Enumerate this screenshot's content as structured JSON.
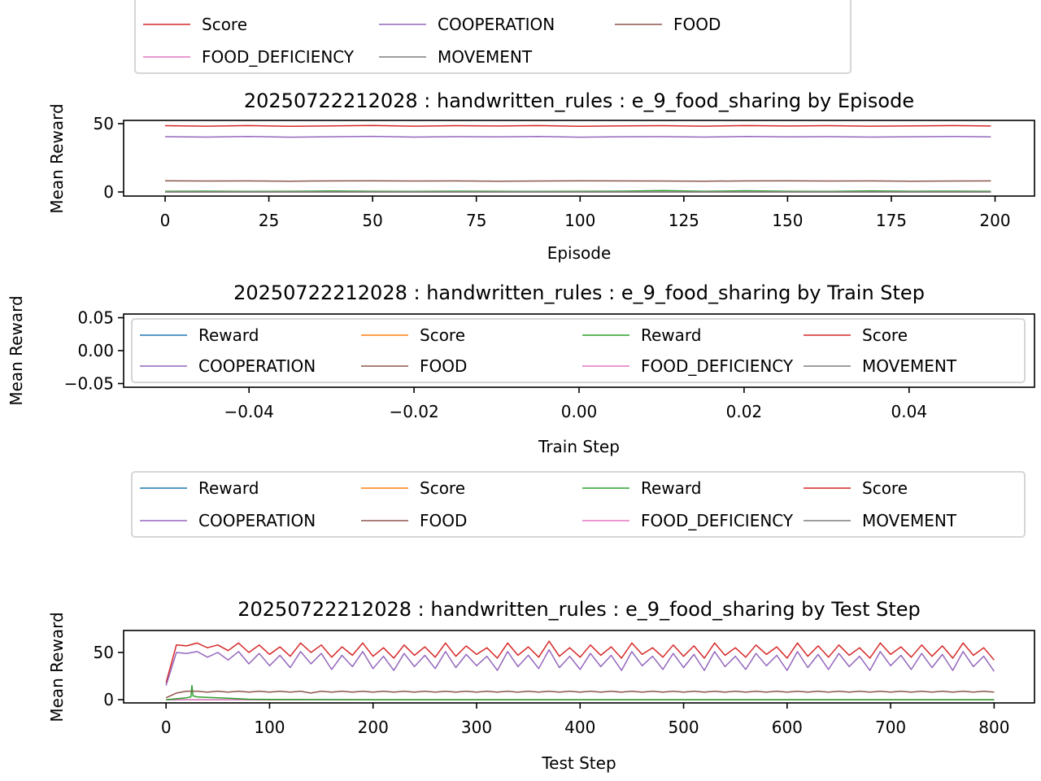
{
  "colors": {
    "blue": "#1f77b4",
    "orange": "#ff7f0e",
    "green": "#2ca02c",
    "red": "#d62728",
    "purple": "#9467bd",
    "brown": "#8c564b",
    "pink": "#e377c2",
    "gray": "#7f7f7f"
  },
  "chart_data": [
    {
      "type": "line",
      "title": "20250722212028 : handwritten_rules : e_9_food_sharing by Episode",
      "xlabel": "Episode",
      "ylabel": "Mean Reward",
      "xlim": [
        -10,
        209.5
      ],
      "ylim": [
        -3,
        52.4
      ],
      "xticks": [
        0,
        25,
        50,
        75,
        100,
        125,
        150,
        175,
        200
      ],
      "xtick_labels": [
        "0",
        "25",
        "50",
        "75",
        "100",
        "125",
        "150",
        "175",
        "200"
      ],
      "yticks": [
        0,
        50
      ],
      "ytick_labels": [
        "0",
        "50"
      ],
      "grid": false,
      "x": [
        0,
        10,
        20,
        30,
        40,
        50,
        60,
        70,
        80,
        90,
        100,
        110,
        120,
        130,
        140,
        150,
        160,
        170,
        180,
        190,
        199
      ],
      "series": [
        {
          "name": "Reward",
          "color": "#2ca02c",
          "values": [
            0.5,
            0.6,
            0.4,
            0.5,
            0.7,
            0.5,
            0.4,
            0.6,
            0.5,
            0.4,
            0.5,
            0.6,
            1.0,
            0.5,
            0.9,
            0.5,
            0.4,
            0.8,
            0.5,
            0.6,
            0.5
          ]
        },
        {
          "name": "FOOD_DEFICIENCY",
          "color": "#e377c2",
          "values": [
            0,
            0,
            0,
            0,
            0,
            0,
            0,
            0,
            0,
            0,
            0,
            0,
            0,
            0,
            0,
            0,
            0,
            0,
            0,
            0,
            0
          ]
        },
        {
          "name": "MOVEMENT",
          "color": "#7f7f7f",
          "values": [
            0,
            0,
            0,
            0,
            0,
            0,
            0,
            0,
            0,
            0,
            0,
            0,
            0,
            0,
            0,
            0,
            0,
            0,
            0,
            0,
            0
          ]
        },
        {
          "name": "FOOD",
          "color": "#8c564b",
          "values": [
            8.2,
            8.0,
            8.1,
            7.9,
            8.1,
            8.2,
            8.0,
            8.1,
            7.9,
            8.0,
            8.2,
            8.1,
            8.0,
            7.9,
            8.1,
            8.2,
            8.0,
            8.1,
            7.9,
            8.0,
            8.1
          ]
        },
        {
          "name": "COOPERATION",
          "color": "#9467bd",
          "values": [
            40.5,
            40.2,
            40.6,
            40.1,
            40.4,
            40.7,
            40.2,
            40.5,
            40.3,
            40.6,
            40.1,
            40.4,
            40.5,
            40.2,
            40.6,
            40.3,
            40.5,
            40.2,
            40.4,
            40.6,
            40.3
          ]
        },
        {
          "name": "Score",
          "color": "#d62728",
          "values": [
            48.5,
            48.2,
            48.6,
            48.1,
            48.4,
            48.7,
            48.2,
            48.5,
            48.3,
            48.6,
            48.1,
            48.4,
            48.5,
            48.2,
            48.6,
            48.3,
            48.5,
            48.2,
            48.4,
            48.6,
            48.3
          ]
        }
      ],
      "legend": {
        "placement": "upper-left (overflowing top)",
        "items": [
          {
            "label": "Score",
            "color": "#d62728"
          },
          {
            "label": "COOPERATION",
            "color": "#9467bd"
          },
          {
            "label": "FOOD",
            "color": "#8c564b"
          },
          {
            "label": "FOOD_DEFICIENCY",
            "color": "#e377c2"
          },
          {
            "label": "MOVEMENT",
            "color": "#7f7f7f"
          }
        ]
      }
    },
    {
      "type": "line",
      "title": "20250722212028 : handwritten_rules : e_9_food_sharing by Train Step",
      "xlabel": "Train Step",
      "ylabel": "Mean Reward",
      "xlim": [
        -0.0552,
        0.0552
      ],
      "ylim": [
        -0.0556,
        0.0556
      ],
      "xticks": [
        -0.04,
        -0.02,
        0.0,
        0.02,
        0.04
      ],
      "xtick_labels": [
        "−0.04",
        "−0.02",
        "0.00",
        "0.02",
        "0.04"
      ],
      "yticks": [
        0.05,
        0.0,
        -0.05
      ],
      "ytick_labels": [
        "0.05",
        "0.00",
        "−0.05"
      ],
      "grid": false,
      "series": [],
      "legend": {
        "placement": "right",
        "items": [
          {
            "label": "Reward",
            "color": "#1f77b4"
          },
          {
            "label": "Score",
            "color": "#ff7f0e"
          },
          {
            "label": "Reward",
            "color": "#2ca02c"
          },
          {
            "label": "Score",
            "color": "#d62728"
          },
          {
            "label": "COOPERATION",
            "color": "#9467bd"
          },
          {
            "label": "FOOD",
            "color": "#8c564b"
          },
          {
            "label": "FOOD_DEFICIENCY",
            "color": "#e377c2"
          },
          {
            "label": "MOVEMENT",
            "color": "#7f7f7f"
          }
        ]
      }
    },
    {
      "type": "line",
      "title": "20250722212028 : handwritten_rules : e_9_food_sharing by Test Step",
      "xlabel": "Test Step",
      "ylabel": "Mean Reward",
      "xlim": [
        -41,
        839
      ],
      "ylim": [
        -3.4,
        73.3
      ],
      "xticks": [
        0,
        100,
        200,
        300,
        400,
        500,
        600,
        700,
        800
      ],
      "xtick_labels": [
        "0",
        "100",
        "200",
        "300",
        "400",
        "500",
        "600",
        "700",
        "800"
      ],
      "yticks": [
        0,
        50
      ],
      "ytick_labels": [
        "0",
        "50"
      ],
      "grid": false,
      "x": [
        0,
        10,
        20,
        30,
        40,
        50,
        60,
        70,
        80,
        90,
        100,
        110,
        120,
        130,
        140,
        150,
        160,
        170,
        180,
        190,
        200,
        210,
        220,
        230,
        240,
        250,
        260,
        270,
        280,
        290,
        300,
        310,
        320,
        330,
        340,
        350,
        360,
        370,
        380,
        390,
        400,
        410,
        420,
        430,
        440,
        450,
        460,
        470,
        480,
        490,
        500,
        510,
        520,
        530,
        540,
        550,
        560,
        570,
        580,
        590,
        600,
        610,
        620,
        630,
        640,
        650,
        660,
        670,
        680,
        690,
        700,
        710,
        720,
        730,
        740,
        750,
        760,
        770,
        780,
        790,
        800
      ],
      "series": [
        {
          "name": "MOVEMENT",
          "color": "#7f7f7f",
          "x": [
            0,
            800
          ],
          "values": [
            0,
            0
          ]
        },
        {
          "name": "FOOD_DEFICIENCY",
          "color": "#e377c2",
          "x": [
            0,
            800
          ],
          "values": [
            0,
            0
          ]
        },
        {
          "name": "Reward",
          "color": "#2ca02c",
          "x": [
            0,
            10,
            20,
            24,
            25,
            26,
            30,
            40,
            50,
            60,
            70,
            80,
            100,
            150,
            200,
            300,
            400,
            500,
            600,
            700,
            800
          ],
          "values": [
            0,
            1,
            2,
            3,
            15,
            4,
            3,
            2.5,
            2,
            1.5,
            1,
            0.5,
            0.2,
            0.1,
            0,
            0,
            0,
            0,
            0,
            0,
            0
          ]
        },
        {
          "name": "FOOD",
          "color": "#8c564b",
          "values": [
            2,
            7,
            9,
            9,
            8,
            9,
            8,
            9,
            8,
            9,
            8,
            9,
            8,
            9,
            7,
            9,
            8,
            9,
            8,
            9,
            8,
            9,
            8,
            9,
            8,
            9,
            8,
            9,
            8,
            9,
            8,
            9,
            8,
            9,
            8,
            9,
            8,
            9,
            8,
            9,
            8,
            9,
            8,
            9,
            8,
            9,
            8,
            9,
            8,
            9,
            8,
            9,
            8,
            9,
            8,
            9,
            8,
            9,
            8,
            9,
            8,
            9,
            8,
            9,
            8,
            9,
            8,
            9,
            8,
            9,
            8,
            9,
            8,
            9,
            8,
            9,
            8,
            9,
            8,
            9,
            8
          ]
        },
        {
          "name": "Score",
          "color": "#d62728",
          "values": [
            18,
            58,
            57,
            60,
            55,
            58,
            52,
            60,
            50,
            58,
            48,
            56,
            46,
            60,
            50,
            58,
            45,
            56,
            47,
            60,
            46,
            55,
            44,
            58,
            47,
            56,
            45,
            60,
            46,
            57,
            48,
            55,
            44,
            60,
            47,
            56,
            45,
            62,
            46,
            55,
            45,
            58,
            47,
            56,
            44,
            60,
            48,
            55,
            45,
            58,
            46,
            57,
            44,
            60,
            47,
            55,
            45,
            58,
            48,
            56,
            44,
            60,
            46,
            57,
            45,
            58,
            47,
            55,
            44,
            60,
            48,
            56,
            45,
            58,
            46,
            57,
            44,
            60,
            47,
            55,
            42
          ]
        },
        {
          "name": "COOPERATION",
          "color": "#9467bd",
          "values": [
            15,
            50,
            49,
            51,
            45,
            50,
            42,
            51,
            38,
            49,
            36,
            47,
            34,
            51,
            38,
            49,
            32,
            47,
            35,
            51,
            33,
            46,
            31,
            49,
            35,
            47,
            33,
            51,
            34,
            48,
            36,
            46,
            31,
            51,
            35,
            47,
            33,
            53,
            34,
            46,
            32,
            49,
            35,
            47,
            31,
            51,
            36,
            46,
            32,
            49,
            34,
            48,
            31,
            51,
            35,
            46,
            32,
            49,
            36,
            47,
            31,
            51,
            34,
            48,
            32,
            49,
            35,
            46,
            31,
            51,
            36,
            47,
            32,
            49,
            34,
            48,
            31,
            51,
            35,
            46,
            30
          ]
        }
      ],
      "legend": {
        "placement": "right",
        "items": [
          {
            "label": "Reward",
            "color": "#1f77b4"
          },
          {
            "label": "Score",
            "color": "#ff7f0e"
          },
          {
            "label": "Reward",
            "color": "#2ca02c"
          },
          {
            "label": "Score",
            "color": "#d62728"
          },
          {
            "label": "COOPERATION",
            "color": "#9467bd"
          },
          {
            "label": "FOOD",
            "color": "#8c564b"
          },
          {
            "label": "FOOD_DEFICIENCY",
            "color": "#e377c2"
          },
          {
            "label": "MOVEMENT",
            "color": "#7f7f7f"
          }
        ]
      }
    }
  ]
}
